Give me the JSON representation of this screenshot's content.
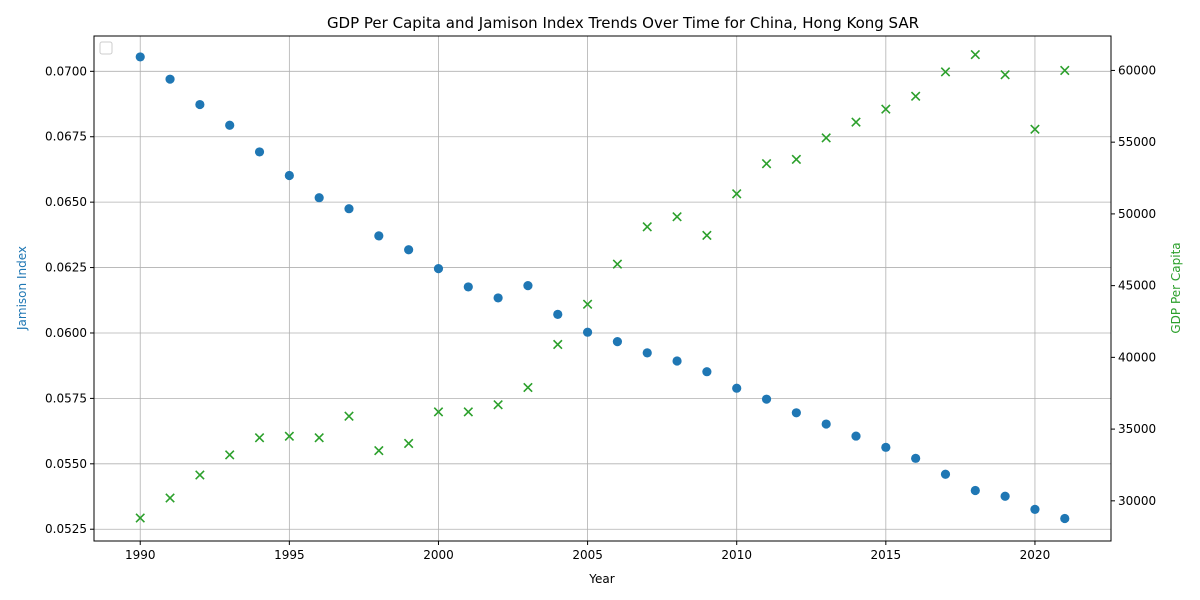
{
  "chart_data": {
    "type": "scatter",
    "title": "GDP Per Capita and Jamison Index Trends Over Time for China, Hong Kong SAR",
    "xlabel": "Year",
    "ylabel_left": "Jamison Index",
    "ylabel_right": "GDP Per Capita",
    "xlim": [
      1988.45,
      2022.55
    ],
    "ylim_left": [
      0.05205,
      0.07135
    ],
    "ylim_right": [
      27200,
      62400
    ],
    "x_ticks": [
      1990,
      1995,
      2000,
      2005,
      2010,
      2015,
      2020
    ],
    "y_ticks_left": [
      0.0525,
      0.055,
      0.0575,
      0.06,
      0.0625,
      0.065,
      0.0675,
      0.07
    ],
    "y_ticks_left_labels": [
      "0.0525",
      "0.0550",
      "0.0575",
      "0.0600",
      "0.0625",
      "0.0650",
      "0.0675",
      "0.0700"
    ],
    "y_ticks_right": [
      30000,
      35000,
      40000,
      45000,
      50000,
      55000,
      60000
    ],
    "y_ticks_right_labels": [
      "30000",
      "35000",
      "40000",
      "45000",
      "50000",
      "55000",
      "60000"
    ],
    "grid": true,
    "legend_placement": "top-left",
    "colors": {
      "jamison": "#1f77b4",
      "gdp": "#2ca02c"
    },
    "x": [
      1990,
      1991,
      1992,
      1993,
      1994,
      1995,
      1996,
      1997,
      1998,
      1999,
      2000,
      2001,
      2002,
      2003,
      2004,
      2005,
      2006,
      2007,
      2008,
      2009,
      2010,
      2011,
      2012,
      2013,
      2014,
      2015,
      2016,
      2017,
      2018,
      2019,
      2020,
      2021
    ],
    "series": [
      {
        "axis": "left",
        "marker": "circle",
        "values": [
          0.07055,
          0.0697,
          0.06873,
          0.06794,
          0.06692,
          0.06602,
          0.06517,
          0.06475,
          0.06371,
          0.06318,
          0.06246,
          0.06176,
          0.06134,
          0.06181,
          0.06071,
          0.06003,
          0.05967,
          0.05924,
          0.05893,
          0.05852,
          0.05789,
          0.05747,
          0.05695,
          0.05652,
          0.05606,
          0.05563,
          0.05521,
          0.0546,
          0.05398,
          0.05376,
          0.05326,
          0.05291
        ]
      },
      {
        "axis": "right",
        "marker": "x",
        "values": [
          28800,
          30200,
          31800,
          33200,
          34400,
          34500,
          34400,
          35900,
          33500,
          34000,
          36200,
          36200,
          36700,
          37900,
          40900,
          43700,
          46500,
          49100,
          49800,
          48500,
          51400,
          53500,
          53800,
          55300,
          56400,
          57300,
          58200,
          59900,
          61100,
          59700,
          55900,
          60000
        ]
      }
    ]
  }
}
